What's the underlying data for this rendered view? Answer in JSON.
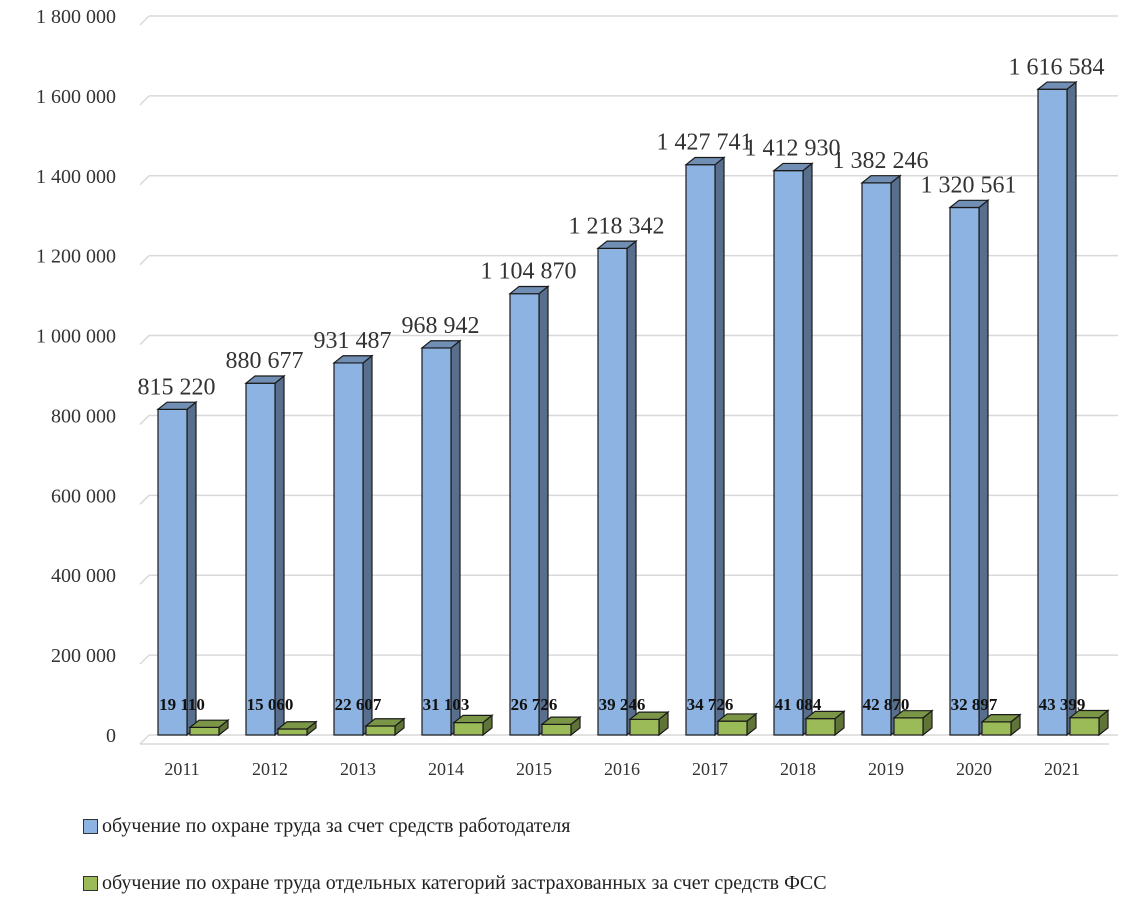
{
  "chart_data": {
    "type": "bar",
    "categories": [
      "2011",
      "2012",
      "2013",
      "2014",
      "2015",
      "2016",
      "2017",
      "2018",
      "2019",
      "2020",
      "2021"
    ],
    "series": [
      {
        "name": "обучение по охране труда за счет средств работодателя",
        "color": "#8DB3E2",
        "values": [
          815220,
          880677,
          931487,
          968942,
          1104870,
          1218342,
          1427741,
          1412930,
          1382246,
          1320561,
          1616584
        ],
        "labels": [
          "815 220",
          "880 677",
          "931 487",
          "968 942",
          "1 104 870",
          "1 218 342",
          "1 427 741",
          "1 412 930",
          "1 382 246",
          "1 320 561",
          "1 616 584"
        ]
      },
      {
        "name": "обучение по охране труда отдельных категорий застрахованных за счет средств ФСС",
        "color": "#9BBB59",
        "values": [
          19110,
          15060,
          22607,
          31103,
          26726,
          39246,
          34726,
          41084,
          42870,
          32897,
          43399
        ],
        "labels": [
          "19 110",
          "15 060",
          "22 607",
          "31 103",
          "26 726",
          "39 246",
          "34 726",
          "41 084",
          "42 870",
          "32 897",
          "43 399"
        ]
      }
    ],
    "ylim": [
      0,
      1800000
    ],
    "yticks": [
      "0",
      "200 000",
      "400 000",
      "600 000",
      "800 000",
      "1 000 000",
      "1 200 000",
      "1 400 000",
      "1 600 000",
      "1 800 000"
    ],
    "grid": true,
    "legend_position": "bottom"
  }
}
